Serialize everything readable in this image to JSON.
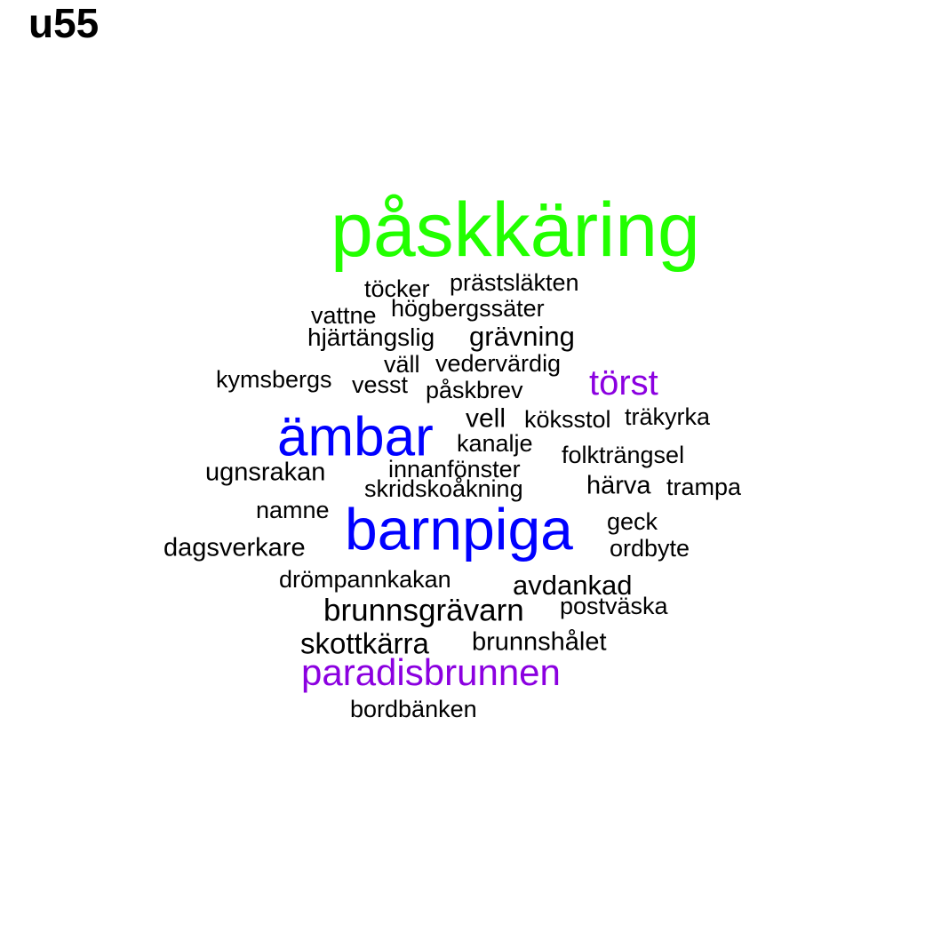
{
  "title": "u55",
  "colors": {
    "green": "#22ff00",
    "blue": "#0000ff",
    "purple": "#8b00e0",
    "black": "#000000"
  },
  "words": [
    {
      "text": "påskkäring",
      "color": "green"
    },
    {
      "text": "ämbar",
      "color": "blue"
    },
    {
      "text": "barnpiga",
      "color": "blue"
    },
    {
      "text": "törst",
      "color": "purple"
    },
    {
      "text": "paradisbrunnen",
      "color": "purple"
    },
    {
      "text": "töcker",
      "color": "black"
    },
    {
      "text": "prästsläkten",
      "color": "black"
    },
    {
      "text": "vattne",
      "color": "black"
    },
    {
      "text": "högbergssäter",
      "color": "black"
    },
    {
      "text": "hjärtängslig",
      "color": "black"
    },
    {
      "text": "grävning",
      "color": "black"
    },
    {
      "text": "väll",
      "color": "black"
    },
    {
      "text": "vedervärdig",
      "color": "black"
    },
    {
      "text": "kymsbergs",
      "color": "black"
    },
    {
      "text": "vesst",
      "color": "black"
    },
    {
      "text": "påskbrev",
      "color": "black"
    },
    {
      "text": "vell",
      "color": "black"
    },
    {
      "text": "köksstol",
      "color": "black"
    },
    {
      "text": "träkyrka",
      "color": "black"
    },
    {
      "text": "kanalje",
      "color": "black"
    },
    {
      "text": "folkträngsel",
      "color": "black"
    },
    {
      "text": "ugnsrakan",
      "color": "black"
    },
    {
      "text": "innanfönster",
      "color": "black"
    },
    {
      "text": "skridskoåkning",
      "color": "black"
    },
    {
      "text": "härva",
      "color": "black"
    },
    {
      "text": "trampa",
      "color": "black"
    },
    {
      "text": "namne",
      "color": "black"
    },
    {
      "text": "geck",
      "color": "black"
    },
    {
      "text": "dagsverkare",
      "color": "black"
    },
    {
      "text": "ordbyte",
      "color": "black"
    },
    {
      "text": "drömpannkakan",
      "color": "black"
    },
    {
      "text": "avdankad",
      "color": "black"
    },
    {
      "text": "brunnsgrävarn",
      "color": "black"
    },
    {
      "text": "postväska",
      "color": "black"
    },
    {
      "text": "skottkärra",
      "color": "black"
    },
    {
      "text": "brunnshålet",
      "color": "black"
    },
    {
      "text": "bordbänken",
      "color": "black"
    }
  ]
}
